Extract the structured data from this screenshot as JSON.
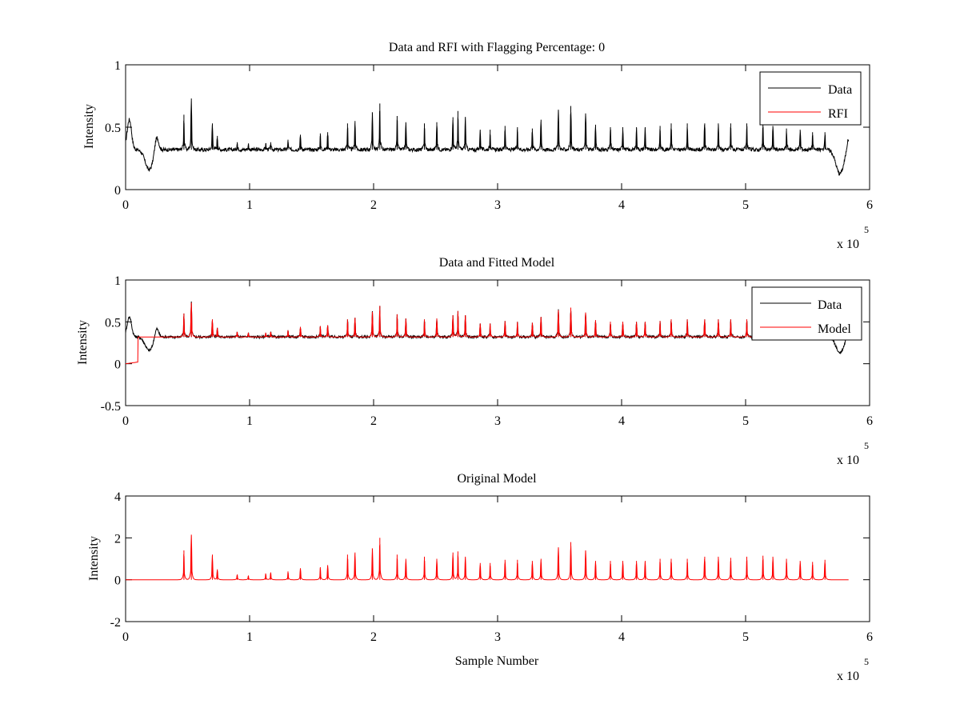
{
  "colors": {
    "data": "#000000",
    "model": "#ff0000",
    "rfi": "#ff0000",
    "axes": "#000000",
    "background": "#ffffff"
  },
  "chart_data": [
    {
      "type": "line",
      "title": "Data and RFI with Flagging Percentage: 0",
      "xlabel": "",
      "ylabel": "Intensity",
      "xlim": [
        0,
        600000
      ],
      "ylim": [
        0,
        1
      ],
      "xticks": [
        0,
        1,
        2,
        3,
        4,
        5,
        6
      ],
      "yticks": [
        0,
        0.5,
        1
      ],
      "yticklabels": [
        "0",
        "0.5",
        "1"
      ],
      "xexponent_label": "x 10",
      "xexponent_power": "5",
      "legend": {
        "position": "top-right",
        "entries": [
          {
            "label": "Data",
            "color": "#000000"
          },
          {
            "label": "RFI",
            "color": "#ff0000"
          }
        ]
      },
      "series": [
        {
          "name": "Data",
          "color": "#000000",
          "baseline": 0.32,
          "dips": [
            {
              "center": 3000,
              "width": 2500,
              "depth": -0.24
            },
            {
              "center": 19000,
              "width": 4500,
              "depth": 0.16
            },
            {
              "center": 576000,
              "width": 4500,
              "depth": 0.19
            }
          ],
          "bumps": [
            {
              "center": 25000,
              "width": 2200,
              "height": 0.12
            },
            {
              "center": 583000,
              "width": 2000,
              "height": 0.1
            }
          ],
          "peaks": [
            [
              47000,
              0.6
            ],
            [
              53000,
              0.73
            ],
            [
              70000,
              0.53
            ],
            [
              74000,
              0.43
            ],
            [
              90000,
              0.38
            ],
            [
              99000,
              0.37
            ],
            [
              113000,
              0.37
            ],
            [
              117000,
              0.38
            ],
            [
              131000,
              0.4
            ],
            [
              141000,
              0.44
            ],
            [
              157000,
              0.45
            ],
            [
              163000,
              0.46
            ],
            [
              179000,
              0.53
            ],
            [
              185000,
              0.55
            ],
            [
              199000,
              0.62
            ],
            [
              205000,
              0.69
            ],
            [
              219000,
              0.59
            ],
            [
              226000,
              0.54
            ],
            [
              241000,
              0.53
            ],
            [
              251000,
              0.54
            ],
            [
              264000,
              0.58
            ],
            [
              268000,
              0.63
            ],
            [
              274000,
              0.58
            ],
            [
              286000,
              0.48
            ],
            [
              294000,
              0.48
            ],
            [
              306000,
              0.51
            ],
            [
              316000,
              0.5
            ],
            [
              328000,
              0.49
            ],
            [
              335000,
              0.56
            ],
            [
              349000,
              0.64
            ],
            [
              359000,
              0.67
            ],
            [
              371000,
              0.61
            ],
            [
              379000,
              0.52
            ],
            [
              391000,
              0.5
            ],
            [
              401000,
              0.5
            ],
            [
              412000,
              0.5
            ],
            [
              419000,
              0.5
            ],
            [
              431000,
              0.51
            ],
            [
              440000,
              0.53
            ],
            [
              453000,
              0.53
            ],
            [
              467000,
              0.53
            ],
            [
              478000,
              0.53
            ],
            [
              488000,
              0.53
            ],
            [
              501000,
              0.53
            ],
            [
              514000,
              0.53
            ],
            [
              522000,
              0.51
            ],
            [
              533000,
              0.49
            ],
            [
              544000,
              0.48
            ],
            [
              554000,
              0.46
            ],
            [
              564000,
              0.46
            ]
          ]
        }
      ]
    },
    {
      "type": "line",
      "title": "Data and Fitted Model",
      "xlabel": "",
      "ylabel": "Intensity",
      "xlim": [
        0,
        600000
      ],
      "ylim": [
        -0.5,
        1
      ],
      "xticks": [
        0,
        1,
        2,
        3,
        4,
        5,
        6
      ],
      "yticks": [
        -0.5,
        0,
        0.5,
        1
      ],
      "yticklabels": [
        "-0.5",
        "0",
        "0.5",
        "1"
      ],
      "xexponent_label": "x 10",
      "xexponent_power": "5",
      "legend": {
        "position": "top-right",
        "entries": [
          {
            "label": "Data",
            "color": "#000000"
          },
          {
            "label": "Model",
            "color": "#ff0000"
          }
        ]
      },
      "series": [
        {
          "name": "Data",
          "color": "#000000",
          "baseline": 0.32,
          "dips": [
            {
              "center": 3000,
              "width": 2500,
              "depth": -0.24
            },
            {
              "center": 19000,
              "width": 4500,
              "depth": 0.16
            },
            {
              "center": 576000,
              "width": 4500,
              "depth": 0.19
            }
          ],
          "bumps": [
            {
              "center": 25000,
              "width": 2200,
              "height": 0.12
            },
            {
              "center": 583000,
              "width": 2000,
              "height": 0.1
            }
          ],
          "peaks": [
            [
              47000,
              0.6
            ],
            [
              53000,
              0.73
            ],
            [
              70000,
              0.53
            ],
            [
              74000,
              0.43
            ],
            [
              90000,
              0.38
            ],
            [
              99000,
              0.37
            ],
            [
              113000,
              0.37
            ],
            [
              117000,
              0.38
            ],
            [
              131000,
              0.4
            ],
            [
              141000,
              0.44
            ],
            [
              157000,
              0.45
            ],
            [
              163000,
              0.46
            ],
            [
              179000,
              0.53
            ],
            [
              185000,
              0.55
            ],
            [
              199000,
              0.62
            ],
            [
              205000,
              0.69
            ],
            [
              219000,
              0.59
            ],
            [
              226000,
              0.54
            ],
            [
              241000,
              0.53
            ],
            [
              251000,
              0.54
            ],
            [
              264000,
              0.58
            ],
            [
              268000,
              0.63
            ],
            [
              274000,
              0.58
            ],
            [
              286000,
              0.48
            ],
            [
              294000,
              0.48
            ],
            [
              306000,
              0.51
            ],
            [
              316000,
              0.5
            ],
            [
              328000,
              0.49
            ],
            [
              335000,
              0.56
            ],
            [
              349000,
              0.64
            ],
            [
              359000,
              0.67
            ],
            [
              371000,
              0.61
            ],
            [
              379000,
              0.52
            ],
            [
              391000,
              0.5
            ],
            [
              401000,
              0.5
            ],
            [
              412000,
              0.5
            ],
            [
              419000,
              0.5
            ],
            [
              431000,
              0.51
            ],
            [
              440000,
              0.53
            ],
            [
              453000,
              0.53
            ],
            [
              467000,
              0.53
            ],
            [
              478000,
              0.53
            ],
            [
              488000,
              0.53
            ],
            [
              501000,
              0.53
            ],
            [
              514000,
              0.53
            ],
            [
              522000,
              0.51
            ],
            [
              533000,
              0.49
            ],
            [
              544000,
              0.48
            ],
            [
              554000,
              0.46
            ],
            [
              564000,
              0.46
            ]
          ]
        },
        {
          "name": "Model",
          "color": "#ff0000",
          "baseline": 0.32,
          "start_value": 0.0,
          "step_at": 10000,
          "peaks": [
            [
              47000,
              0.6
            ],
            [
              53000,
              0.73
            ],
            [
              70000,
              0.53
            ],
            [
              74000,
              0.43
            ],
            [
              90000,
              0.38
            ],
            [
              99000,
              0.37
            ],
            [
              113000,
              0.37
            ],
            [
              117000,
              0.38
            ],
            [
              131000,
              0.4
            ],
            [
              141000,
              0.44
            ],
            [
              157000,
              0.45
            ],
            [
              163000,
              0.46
            ],
            [
              179000,
              0.53
            ],
            [
              185000,
              0.55
            ],
            [
              199000,
              0.62
            ],
            [
              205000,
              0.69
            ],
            [
              219000,
              0.59
            ],
            [
              226000,
              0.54
            ],
            [
              241000,
              0.53
            ],
            [
              251000,
              0.54
            ],
            [
              264000,
              0.58
            ],
            [
              268000,
              0.63
            ],
            [
              274000,
              0.58
            ],
            [
              286000,
              0.48
            ],
            [
              294000,
              0.48
            ],
            [
              306000,
              0.51
            ],
            [
              316000,
              0.5
            ],
            [
              328000,
              0.49
            ],
            [
              335000,
              0.56
            ],
            [
              349000,
              0.64
            ],
            [
              359000,
              0.67
            ],
            [
              371000,
              0.61
            ],
            [
              379000,
              0.52
            ],
            [
              391000,
              0.5
            ],
            [
              401000,
              0.5
            ],
            [
              412000,
              0.5
            ],
            [
              419000,
              0.5
            ],
            [
              431000,
              0.51
            ],
            [
              440000,
              0.53
            ],
            [
              453000,
              0.53
            ],
            [
              467000,
              0.53
            ],
            [
              478000,
              0.53
            ],
            [
              488000,
              0.53
            ],
            [
              501000,
              0.53
            ],
            [
              514000,
              0.53
            ],
            [
              522000,
              0.51
            ],
            [
              533000,
              0.49
            ],
            [
              544000,
              0.48
            ],
            [
              554000,
              0.46
            ],
            [
              564000,
              0.46
            ]
          ]
        }
      ]
    },
    {
      "type": "line",
      "title": "Original Model",
      "xlabel": "Sample Number",
      "ylabel": "Intensity",
      "xlim": [
        0,
        600000
      ],
      "ylim": [
        -2,
        4
      ],
      "xticks": [
        0,
        1,
        2,
        3,
        4,
        5,
        6
      ],
      "yticks": [
        -2,
        0,
        2,
        4
      ],
      "yticklabels": [
        "-2",
        "0",
        "2",
        "4"
      ],
      "xexponent_label": "x 10",
      "xexponent_power": "5",
      "legend": null,
      "series": [
        {
          "name": "Original Model",
          "color": "#ff0000",
          "baseline": 0.0,
          "peaks": [
            [
              47000,
              1.4
            ],
            [
              53000,
              2.15
            ],
            [
              70000,
              1.2
            ],
            [
              74000,
              0.5
            ],
            [
              90000,
              0.25
            ],
            [
              99000,
              0.2
            ],
            [
              113000,
              0.3
            ],
            [
              117000,
              0.35
            ],
            [
              131000,
              0.4
            ],
            [
              141000,
              0.55
            ],
            [
              157000,
              0.6
            ],
            [
              163000,
              0.7
            ],
            [
              179000,
              1.2
            ],
            [
              185000,
              1.3
            ],
            [
              199000,
              1.5
            ],
            [
              205000,
              2.0
            ],
            [
              219000,
              1.2
            ],
            [
              226000,
              1.0
            ],
            [
              241000,
              1.1
            ],
            [
              251000,
              1.0
            ],
            [
              264000,
              1.3
            ],
            [
              268000,
              1.35
            ],
            [
              274000,
              1.1
            ],
            [
              286000,
              0.8
            ],
            [
              294000,
              0.8
            ],
            [
              306000,
              0.95
            ],
            [
              316000,
              0.95
            ],
            [
              328000,
              0.9
            ],
            [
              335000,
              1.0
            ],
            [
              349000,
              1.55
            ],
            [
              359000,
              1.8
            ],
            [
              371000,
              1.4
            ],
            [
              379000,
              0.9
            ],
            [
              391000,
              0.9
            ],
            [
              401000,
              0.9
            ],
            [
              412000,
              0.9
            ],
            [
              419000,
              0.9
            ],
            [
              431000,
              1.0
            ],
            [
              440000,
              1.0
            ],
            [
              453000,
              1.0
            ],
            [
              467000,
              1.1
            ],
            [
              478000,
              1.1
            ],
            [
              488000,
              1.05
            ],
            [
              501000,
              1.1
            ],
            [
              514000,
              1.15
            ],
            [
              522000,
              1.1
            ],
            [
              533000,
              1.0
            ],
            [
              544000,
              0.9
            ],
            [
              554000,
              0.85
            ],
            [
              564000,
              0.95
            ]
          ]
        }
      ]
    }
  ]
}
